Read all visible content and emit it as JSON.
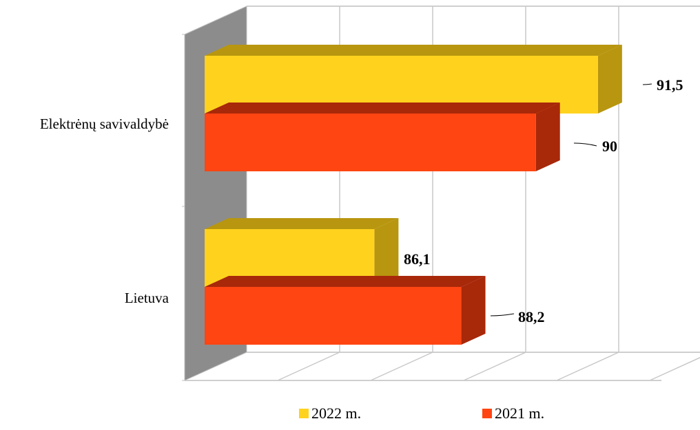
{
  "chart_data": {
    "type": "bar",
    "orientation": "horizontal",
    "style": "3d",
    "categories": [
      "Elektrėnų savivaldybė",
      "Lietuva"
    ],
    "series": [
      {
        "name": "2022 m.",
        "values": [
          91.5,
          86.1
        ],
        "labels": [
          "91,5",
          "86,1"
        ],
        "color": "#FFD21E",
        "color_dark": "#B8960F"
      },
      {
        "name": "2021 m.",
        "values": [
          90,
          88.2
        ],
        "labels": [
          "90",
          "88,2"
        ],
        "color": "#FF4512",
        "color_dark": "#A8280A"
      }
    ],
    "xlim": [
      82,
      93
    ],
    "grid": true,
    "legend": "bottom"
  },
  "legend": {
    "items": [
      "2022 m.",
      "2021 m."
    ]
  }
}
